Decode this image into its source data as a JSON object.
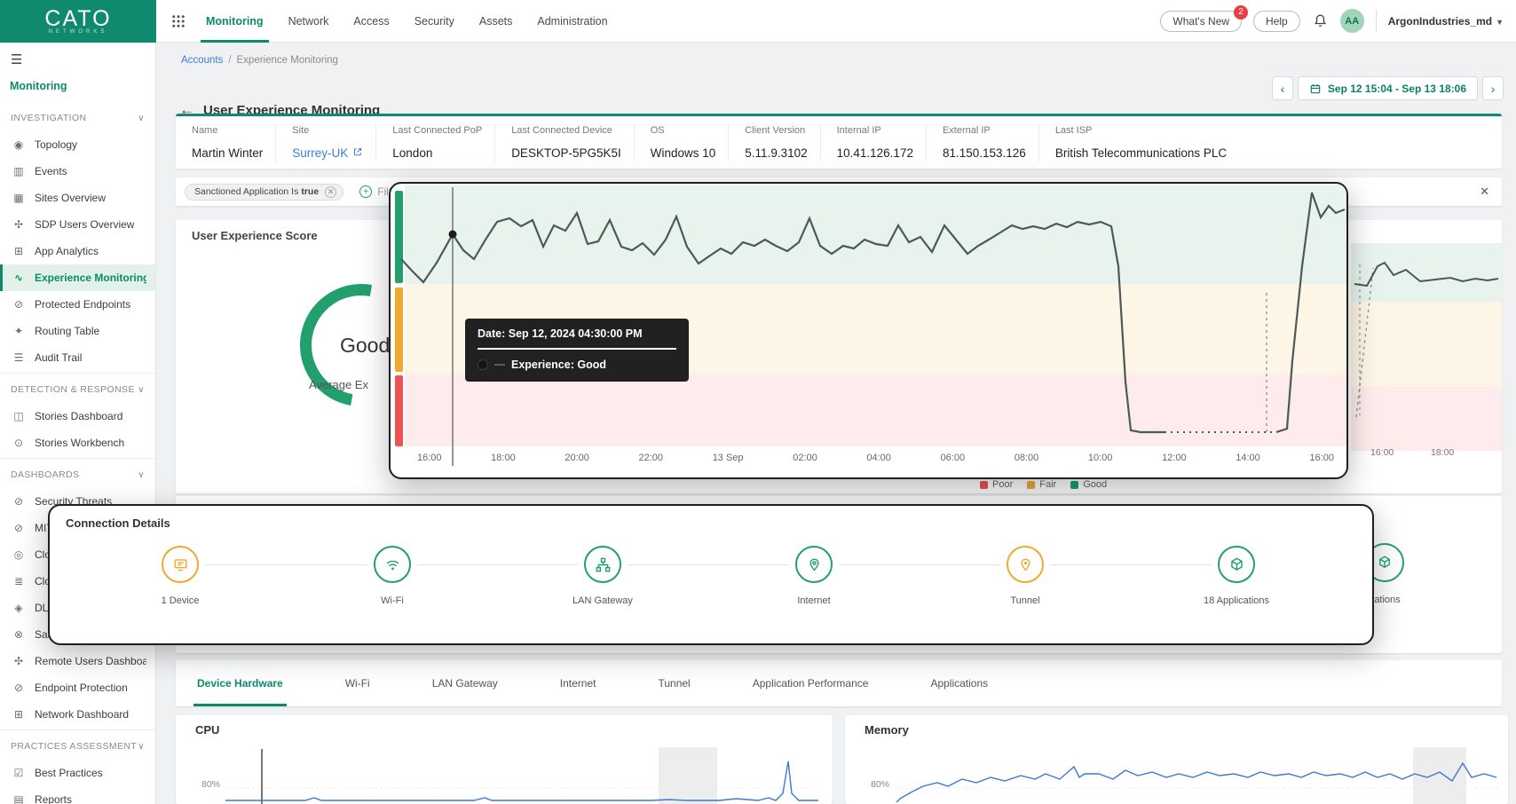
{
  "topbar": {
    "logo_title": "CATO",
    "logo_subtitle": "NETWORKS",
    "nav": [
      {
        "label": "Monitoring",
        "active": true
      },
      {
        "label": "Network"
      },
      {
        "label": "Access"
      },
      {
        "label": "Security"
      },
      {
        "label": "Assets"
      },
      {
        "label": "Administration"
      }
    ],
    "whats_new_label": "What's New",
    "whats_new_badge": "2",
    "help_label": "Help",
    "avatar_initials": "AA",
    "account_name": "ArgonIndustries_md"
  },
  "sidebar": {
    "menu_title": "Monitoring",
    "rows": [
      {
        "type": "header",
        "label": "INVESTIGATION"
      },
      {
        "type": "item",
        "label": "Topology",
        "icon": "topology-icon"
      },
      {
        "type": "item",
        "label": "Events",
        "icon": "events-icon"
      },
      {
        "type": "item",
        "label": "Sites Overview",
        "icon": "sites-overview-icon"
      },
      {
        "type": "item",
        "label": "SDP Users Overview",
        "icon": "sdp-users-icon"
      },
      {
        "type": "item",
        "label": "App Analytics",
        "icon": "app-analytics-icon"
      },
      {
        "type": "item",
        "label": "Experience Monitoring",
        "icon": "experience-monitoring-icon",
        "active": true
      },
      {
        "type": "item",
        "label": "Protected Endpoints",
        "icon": "protected-endpoints-icon"
      },
      {
        "type": "item",
        "label": "Routing Table",
        "icon": "routing-table-icon"
      },
      {
        "type": "item",
        "label": "Audit Trail",
        "icon": "audit-trail-icon"
      },
      {
        "type": "divider"
      },
      {
        "type": "header",
        "label": "DETECTION & RESPONSE"
      },
      {
        "type": "item",
        "label": "Stories Dashboard",
        "icon": "stories-dashboard-icon"
      },
      {
        "type": "item",
        "label": "Stories Workbench",
        "icon": "stories-workbench-icon"
      },
      {
        "type": "divider"
      },
      {
        "type": "header",
        "label": "DASHBOARDS"
      },
      {
        "type": "item",
        "label": "Security Threats",
        "icon": "security-threats-icon"
      },
      {
        "type": "item",
        "label": "MIT",
        "icon": "shield-icon"
      },
      {
        "type": "item",
        "label": "Clo",
        "icon": "cloud-icon"
      },
      {
        "type": "item",
        "label": "Clo",
        "icon": "list-icon"
      },
      {
        "type": "item",
        "label": "DLP",
        "icon": "dlp-icon"
      },
      {
        "type": "item",
        "label": "Saa",
        "icon": "saas-icon"
      },
      {
        "type": "item",
        "label": "Remote Users Dashboard",
        "icon": "remote-users-icon"
      },
      {
        "type": "item",
        "label": "Endpoint Protection",
        "icon": "endpoint-protection-icon"
      },
      {
        "type": "item",
        "label": "Network Dashboard",
        "icon": "network-dashboard-icon"
      },
      {
        "type": "divider"
      },
      {
        "type": "header",
        "label": "PRACTICES ASSESSMENT"
      },
      {
        "type": "item",
        "label": "Best Practices",
        "icon": "best-practices-icon"
      },
      {
        "type": "item",
        "label": "Reports",
        "icon": "reports-icon"
      }
    ]
  },
  "breadcrumb": {
    "root": "Accounts",
    "sep": "/",
    "current": "Experience Monitoring"
  },
  "page": {
    "title": "User Experience Monitoring"
  },
  "daterange": {
    "value": "Sep 12 15:04 - Sep 13 18:06"
  },
  "user_info": [
    {
      "label": "Name",
      "value": "Martin Winter"
    },
    {
      "label": "Site",
      "value": "Surrey-UK",
      "link": true
    },
    {
      "label": "Last Connected PoP",
      "value": "London"
    },
    {
      "label": "Last Connected Device",
      "value": "DESKTOP-5PG5K5I"
    },
    {
      "label": "OS",
      "value": "Windows 10"
    },
    {
      "label": "Client Version",
      "value": "5.11.9.3102"
    },
    {
      "label": "Internal IP",
      "value": "10.41.126.172"
    },
    {
      "label": "External IP",
      "value": "81.150.153.126"
    },
    {
      "label": "Last ISP",
      "value": "British Telecommunications PLC"
    }
  ],
  "filter": {
    "chip_label": "Sanctioned Application Is",
    "chip_value": "true",
    "add_label": "Filter"
  },
  "score_card": {
    "title": "User Experience Score",
    "gauge_value": "Good",
    "gauge_caption": "Average Ex"
  },
  "experience_chart": {
    "tooltip_date": "Date: Sep 12, 2024 04:30:00 PM",
    "tooltip_value": "Experience: Good",
    "x_ticks": [
      "16:00",
      "18:00",
      "20:00",
      "22:00",
      "13 Sep",
      "02:00",
      "04:00",
      "06:00",
      "08:00",
      "10:00",
      "12:00",
      "14:00",
      "16:00"
    ],
    "legend": [
      {
        "label": "Poor",
        "color": "#ee5253"
      },
      {
        "label": "Fair",
        "color": "#f2a93b"
      },
      {
        "label": "Good",
        "color": "#21a06d"
      }
    ],
    "mini_ticks": [
      "16:00",
      "18:00"
    ]
  },
  "connection": {
    "title": "Connection Details",
    "nodes": [
      {
        "label": "1 Device",
        "icon": "device-icon",
        "color": "#f0a92e"
      },
      {
        "label": "Wi-Fi",
        "icon": "wifi-icon",
        "color": "#21a06d"
      },
      {
        "label": "LAN Gateway",
        "icon": "lan-gateway-icon",
        "color": "#21a06d"
      },
      {
        "label": "Internet",
        "icon": "internet-icon",
        "color": "#21a06d"
      },
      {
        "label": "Tunnel",
        "icon": "tunnel-icon",
        "color": "#f0a92e"
      },
      {
        "label": "18 Applications",
        "icon": "applications-icon",
        "color": "#21a06d"
      }
    ],
    "partial_node_label": "ations"
  },
  "tabs": [
    {
      "label": "Device Hardware",
      "active": true
    },
    {
      "label": "Wi-Fi"
    },
    {
      "label": "LAN Gateway"
    },
    {
      "label": "Internet"
    },
    {
      "label": "Tunnel"
    },
    {
      "label": "Application Performance"
    },
    {
      "label": "Applications"
    }
  ],
  "hardware": {
    "cpu_title": "CPU",
    "memory_title": "Memory",
    "y_tick": "80%"
  },
  "colors": {
    "brand_green": "#0f8a6e",
    "accent_green": "#21a06d",
    "amber": "#f0a92e",
    "red": "#ee5253",
    "band_good": "#e8f3ee",
    "band_fair": "#fdf6e6",
    "band_poor": "#fdeceb",
    "link_blue": "#3b7ddd",
    "line": "#4b5a58"
  },
  "chart_data": [
    {
      "type": "line",
      "name": "experience-over-time",
      "x_ticks": [
        "16:00",
        "18:00",
        "20:00",
        "22:00",
        "13 Sep",
        "02:00",
        "04:00",
        "06:00",
        "08:00",
        "10:00",
        "12:00",
        "14:00",
        "16:00"
      ],
      "bands": [
        "Good",
        "Fair",
        "Poor"
      ],
      "legend": [
        "Poor",
        "Fair",
        "Good"
      ],
      "series": [
        {
          "name": "Experience",
          "summary": "Good from Sep 12 16:00 until about Sep 13 10:00, drops sharply to Poor until about 14:00, then returns to Good"
        }
      ],
      "tooltip": {
        "date": "Sep 12, 2024 04:30:00 PM",
        "value": "Good"
      }
    },
    {
      "type": "line",
      "name": "cpu-usage",
      "title": "CPU",
      "visible_y_tick": "80%"
    },
    {
      "type": "line",
      "name": "memory-usage",
      "title": "Memory",
      "visible_y_tick": "80%"
    }
  ]
}
